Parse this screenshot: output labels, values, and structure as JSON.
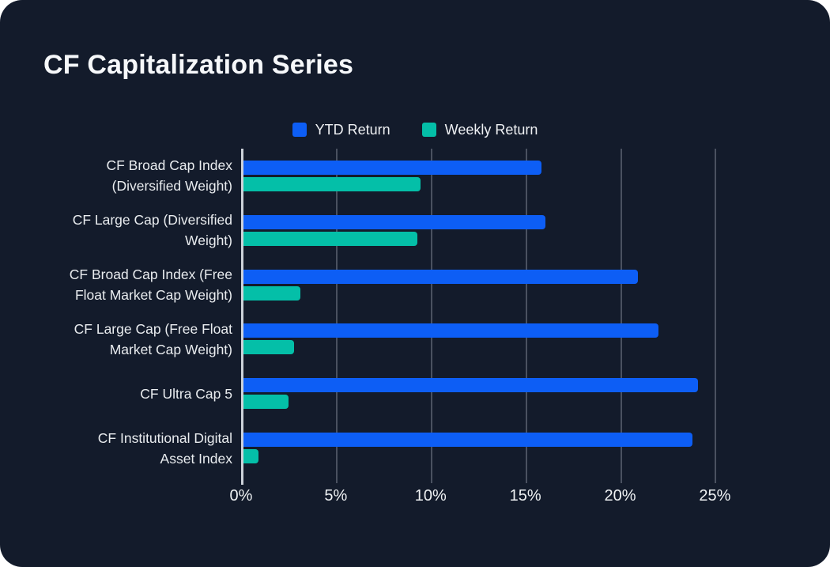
{
  "card": {
    "title": "CF Capitalization Series"
  },
  "theme": {
    "card_background": "#131b2b",
    "title_color": "#f6f8fa",
    "text_color": "#e9ecef",
    "grid_color": "#4a5160",
    "axis_color": "#cdd2d9",
    "ytd_color": "#0d5ef5",
    "weekly_color": "#04bfa8"
  },
  "chart_data": {
    "type": "bar",
    "orientation": "horizontal",
    "title": "CF Capitalization Series",
    "xlabel": "",
    "ylabel": "",
    "grid": true,
    "legend_position": "top-center",
    "xlim": [
      0,
      26.9
    ],
    "x_ticks": [
      {
        "value": 0,
        "label": "0%"
      },
      {
        "value": 5,
        "label": "5%"
      },
      {
        "value": 10,
        "label": "10%"
      },
      {
        "value": 15,
        "label": "15%"
      },
      {
        "value": 20,
        "label": "20%"
      },
      {
        "value": 25,
        "label": "25%"
      }
    ],
    "categories": [
      {
        "lines": [
          "CF Broad Cap Index",
          "(Diversified Weight)"
        ]
      },
      {
        "lines": [
          "CF Large Cap (Diversified",
          "Weight)"
        ]
      },
      {
        "lines": [
          "CF Broad Cap Index (Free",
          "Float Market Cap Weight)"
        ]
      },
      {
        "lines": [
          "CF Large Cap (Free Float",
          "Market Cap Weight)"
        ]
      },
      {
        "lines": [
          "CF Ultra Cap 5"
        ]
      },
      {
        "lines": [
          "CF Institutional Digital",
          "Asset Index"
        ]
      }
    ],
    "series": [
      {
        "name": "YTD Return",
        "slug": "ytd",
        "color": "#0d5ef5",
        "values": [
          15.8,
          16.0,
          20.9,
          22.0,
          24.1,
          23.8
        ]
      },
      {
        "name": "Weekly Return",
        "slug": "weekly",
        "color": "#04bfa8",
        "values": [
          9.4,
          9.2,
          3.0,
          2.7,
          2.4,
          0.8
        ]
      }
    ]
  }
}
